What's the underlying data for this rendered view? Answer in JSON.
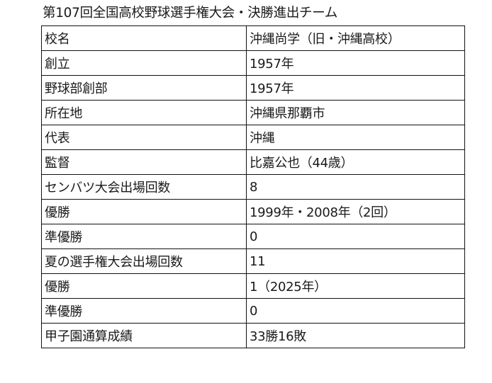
{
  "title": "第107回全国高校野球選手権大会・決勝進出チーム",
  "rows": [
    {
      "label": "校名",
      "value": "沖縄尚学（旧・沖縄高校）"
    },
    {
      "label": "創立",
      "value": "1957年"
    },
    {
      "label": "野球部創部",
      "value": "1957年"
    },
    {
      "label": "所在地",
      "value": "沖縄県那覇市"
    },
    {
      "label": "代表",
      "value": "沖縄"
    },
    {
      "label": "監督",
      "value": "比嘉公也（44歳）"
    },
    {
      "label": "センバツ大会出場回数",
      "value": "8"
    },
    {
      "label": "優勝",
      "value": "1999年・2008年（2回）"
    },
    {
      "label": "準優勝",
      "value": "0"
    },
    {
      "label": "夏の選手権大会出場回数",
      "value": "11"
    },
    {
      "label": "優勝",
      "value": "1（2025年）"
    },
    {
      "label": "準優勝",
      "value": "0"
    },
    {
      "label": "甲子園通算成績",
      "value": "33勝16敗"
    }
  ]
}
